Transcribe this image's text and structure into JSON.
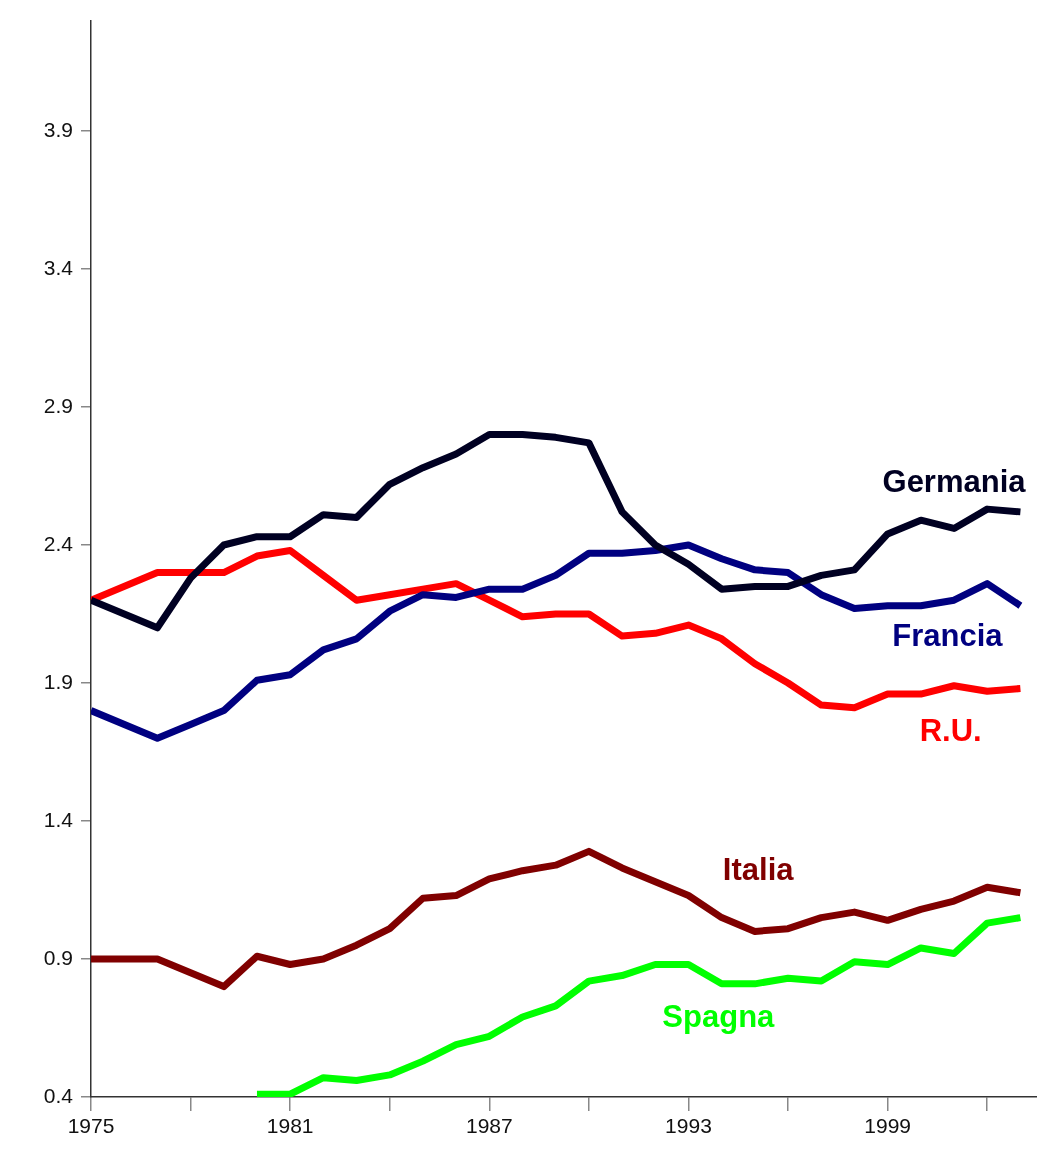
{
  "chart_data": {
    "type": "line",
    "x": [
      1975,
      1977,
      1978,
      1979,
      1980,
      1981,
      1982,
      1983,
      1984,
      1985,
      1986,
      1987,
      1988,
      1989,
      1990,
      1991,
      1992,
      1993,
      1994,
      1995,
      1996,
      1997,
      1998,
      1999,
      2000,
      2001,
      2002,
      2003
    ],
    "series": [
      {
        "name": "Germania",
        "color": "#000022",
        "values": [
          2.2,
          2.1,
          2.28,
          2.4,
          2.43,
          2.43,
          2.51,
          2.5,
          2.62,
          2.68,
          2.73,
          2.8,
          2.8,
          2.79,
          2.77,
          2.52,
          2.4,
          2.33,
          2.24,
          2.25,
          2.25,
          2.29,
          2.31,
          2.44,
          2.49,
          2.46,
          2.53,
          2.52
        ]
      },
      {
        "name": "Francia",
        "color": "#000080",
        "values": [
          1.8,
          1.7,
          1.75,
          1.8,
          1.91,
          1.93,
          2.02,
          2.06,
          2.16,
          2.22,
          2.21,
          2.24,
          2.24,
          2.29,
          2.37,
          2.37,
          2.38,
          2.4,
          2.35,
          2.31,
          2.3,
          2.22,
          2.17,
          2.18,
          2.18,
          2.2,
          2.26,
          2.18
        ]
      },
      {
        "name": "R.U.",
        "color": "#ff0000",
        "values": [
          2.2,
          2.3,
          2.3,
          2.3,
          2.36,
          2.38,
          2.29,
          2.2,
          2.22,
          2.24,
          2.26,
          2.2,
          2.14,
          2.15,
          2.15,
          2.07,
          2.08,
          2.11,
          2.06,
          1.97,
          1.9,
          1.82,
          1.81,
          1.86,
          1.86,
          1.89,
          1.87,
          1.88
        ]
      },
      {
        "name": "Italia",
        "color": "#800000",
        "values": [
          0.9,
          0.9,
          0.85,
          0.8,
          0.91,
          0.88,
          0.9,
          0.95,
          1.01,
          1.12,
          1.13,
          1.19,
          1.22,
          1.24,
          1.29,
          1.23,
          1.18,
          1.13,
          1.05,
          1.0,
          1.01,
          1.05,
          1.07,
          1.04,
          1.08,
          1.11,
          1.16,
          1.14
        ]
      },
      {
        "name": "Spagna",
        "color": "#00ff00",
        "x": [
          1980,
          1981,
          1982,
          1983,
          1984,
          1985,
          1986,
          1987,
          1988,
          1989,
          1990,
          1991,
          1992,
          1993,
          1994,
          1995,
          1996,
          1997,
          1998,
          1999,
          2000,
          2001,
          2002,
          2003
        ],
        "values": [
          0.41,
          0.41,
          0.47,
          0.46,
          0.48,
          0.53,
          0.59,
          0.62,
          0.69,
          0.73,
          0.82,
          0.84,
          0.88,
          0.88,
          0.81,
          0.81,
          0.83,
          0.82,
          0.89,
          0.88,
          0.94,
          0.92,
          1.03,
          1.05
        ]
      }
    ],
    "xlim": [
      1975,
      2003.5
    ],
    "xticks": [
      1975,
      {
        "value": 1978,
        "label": null
      },
      1981,
      {
        "value": 1984,
        "label": null
      },
      1987,
      {
        "value": 1990,
        "label": null
      },
      1993,
      {
        "value": 1996,
        "label": null
      },
      1999,
      {
        "value": 2002,
        "label": null
      }
    ],
    "ylim": [
      0.4,
      4.3
    ],
    "yticks": [
      0.4,
      0.9,
      1.4,
      1.9,
      2.4,
      2.9,
      3.4,
      3.9
    ],
    "grid": false,
    "legend": false,
    "marker": "none",
    "line_style": "solid"
  }
}
